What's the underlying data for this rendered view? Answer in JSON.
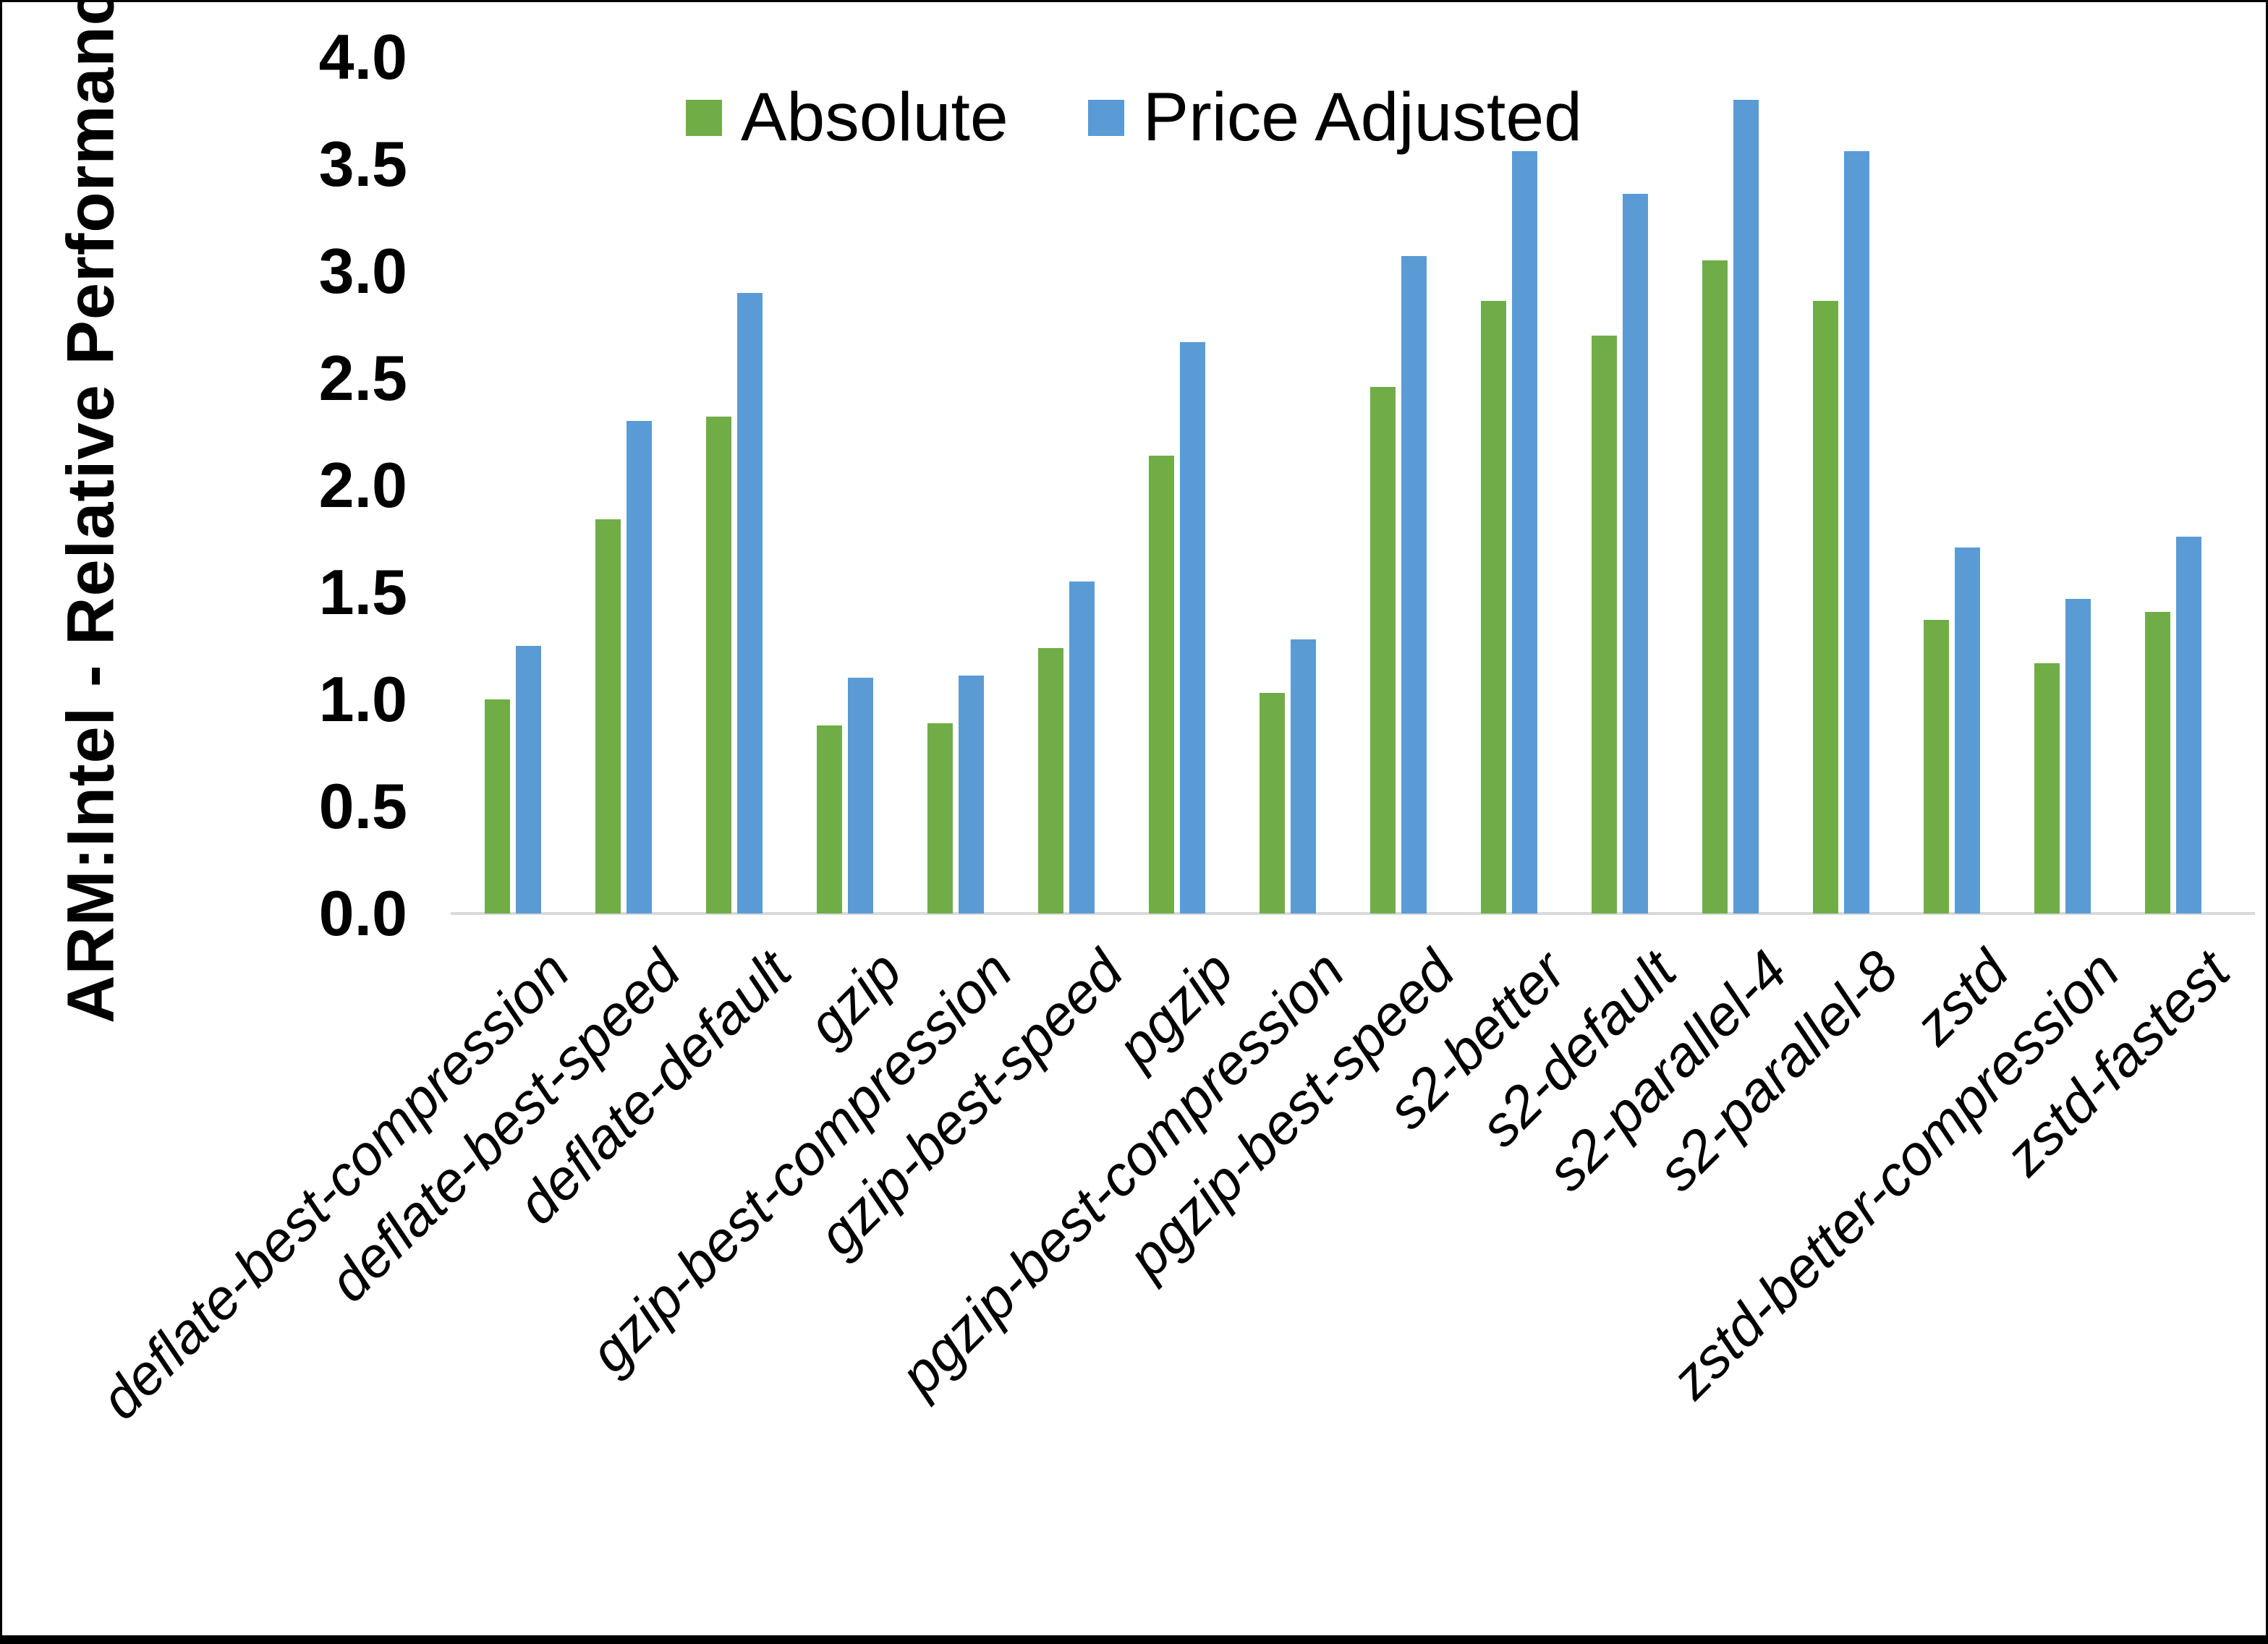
{
  "chart_data": {
    "type": "bar",
    "title": "",
    "xlabel": "",
    "ylabel": "ARM:Intel - Relative Performance",
    "ylim": [
      0.0,
      4.0
    ],
    "ytick_step": 0.5,
    "ytick_labels": [
      "0.0",
      "0.5",
      "1.0",
      "1.5",
      "2.0",
      "2.5",
      "3.0",
      "3.5",
      "4.0"
    ],
    "ytick_values": [
      0.0,
      0.5,
      1.0,
      1.5,
      2.0,
      2.5,
      3.0,
      3.5,
      4.0
    ],
    "grid": false,
    "legend_position": "top-center",
    "categories": [
      "deflate-best-compression",
      "deflate-best-speed",
      "deflate-default",
      "gzip",
      "gzip-best-compression",
      "gzip-best-speed",
      "pgzip",
      "pgzip-best-compression",
      "pgzip-best-speed",
      "s2-better",
      "s2-default",
      "s2-parallel-4",
      "s2-parallel-8",
      "zstd",
      "zstd-better-compression",
      "zstd-fastest"
    ],
    "series": [
      {
        "name": "Absolute",
        "color": "#70AD47",
        "values": [
          1.0,
          1.84,
          2.32,
          0.88,
          0.89,
          1.24,
          2.14,
          1.03,
          2.46,
          2.86,
          2.7,
          3.05,
          2.86,
          1.37,
          1.17,
          1.41
        ]
      },
      {
        "name": "Price Adjusted",
        "color": "#5B9BD5",
        "values": [
          1.25,
          2.3,
          2.9,
          1.1,
          1.11,
          1.55,
          2.67,
          1.28,
          3.07,
          3.56,
          3.36,
          3.8,
          3.56,
          1.71,
          1.47,
          1.76
        ]
      }
    ],
    "colors": {
      "absolute": "#70AD47",
      "price_adjusted": "#5B9BD5",
      "axis_line": "#D9D9D9",
      "text": "#000000"
    }
  }
}
